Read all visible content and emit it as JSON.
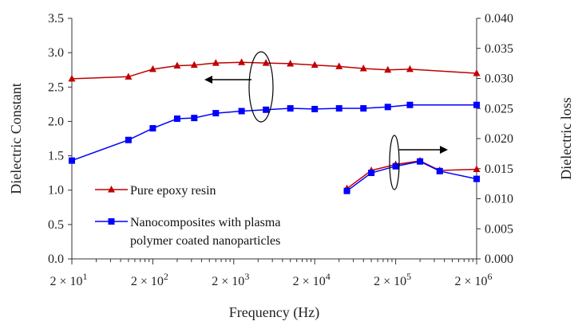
{
  "chart_data": {
    "type": "line",
    "x_scale": "log",
    "xlabel": "Frequency (Hz)",
    "ylabel_left": "Dielectric Constant",
    "ylabel_right": "Dielectric loss",
    "ylim_left": [
      0,
      3.5
    ],
    "ylim_right": [
      0,
      0.04
    ],
    "xlim": [
      20,
      2000000
    ],
    "y_ticks_left": [
      "0.0",
      "0.5",
      "1.0",
      "1.5",
      "2.0",
      "2.5",
      "3.0",
      "3.5"
    ],
    "y_ticks_right": [
      "0.000",
      "0.005",
      "0.010",
      "0.015",
      "0.020",
      "0.025",
      "0.030",
      "0.035",
      "0.040"
    ],
    "x_ticks": [
      {
        "value": 20,
        "base": "2 × 10",
        "exp": "1"
      },
      {
        "value": 200,
        "base": "2 × 10",
        "exp": "2"
      },
      {
        "value": 2000,
        "base": "2 × 10",
        "exp": "3"
      },
      {
        "value": 20000,
        "base": "2 × 10",
        "exp": "4"
      },
      {
        "value": 200000,
        "base": "2 × 10",
        "exp": "5"
      },
      {
        "value": 2000000,
        "base": "2 × 10",
        "exp": "6"
      }
    ],
    "grid": false,
    "legend_position": "lower-left",
    "series": [
      {
        "name": "Pure epoxy resin",
        "color": "#C00000",
        "marker": "triangle",
        "axis": "left",
        "points": [
          [
            20,
            2.62
          ],
          [
            100,
            2.65
          ],
          [
            200,
            2.76
          ],
          [
            400,
            2.81
          ],
          [
            650,
            2.82
          ],
          [
            1200,
            2.85
          ],
          [
            2500,
            2.86
          ],
          [
            5000,
            2.85
          ],
          [
            10000,
            2.84
          ],
          [
            20000,
            2.82
          ],
          [
            40000,
            2.8
          ],
          [
            80000,
            2.77
          ],
          [
            160000,
            2.75
          ],
          [
            300000,
            2.76
          ],
          [
            2000000,
            2.7
          ]
        ]
      },
      {
        "name": "Nanocomposites with plasma polymer coated nanoparticles",
        "color": "#0000FF",
        "marker": "square",
        "axis": "left",
        "points": [
          [
            20,
            1.43
          ],
          [
            100,
            1.73
          ],
          [
            200,
            1.9
          ],
          [
            400,
            2.04
          ],
          [
            650,
            2.05
          ],
          [
            1200,
            2.12
          ],
          [
            2500,
            2.15
          ],
          [
            5000,
            2.17
          ],
          [
            10000,
            2.19
          ],
          [
            20000,
            2.18
          ],
          [
            40000,
            2.19
          ],
          [
            80000,
            2.19
          ],
          [
            160000,
            2.21
          ],
          [
            300000,
            2.24
          ],
          [
            2000000,
            2.24
          ]
        ]
      },
      {
        "name": "Pure epoxy resin",
        "color": "#C00000",
        "marker": "triangle",
        "axis": "right",
        "points": [
          [
            50000,
            0.0117
          ],
          [
            100000,
            0.0147
          ],
          [
            200000,
            0.0157
          ],
          [
            400000,
            0.0163
          ],
          [
            700000,
            0.0147
          ],
          [
            2000000,
            0.0149
          ]
        ]
      },
      {
        "name": "Nanocomposites with plasma polymer coated nanoparticles",
        "color": "#0000FF",
        "marker": "square",
        "axis": "right",
        "points": [
          [
            50000,
            0.0113
          ],
          [
            100000,
            0.0143
          ],
          [
            200000,
            0.0154
          ],
          [
            400000,
            0.0162
          ],
          [
            700000,
            0.0146
          ],
          [
            2000000,
            0.0133
          ]
        ]
      }
    ],
    "legend": [
      {
        "color": "#C00000",
        "marker": "triangle",
        "lines": [
          "Pure epoxy resin"
        ]
      },
      {
        "color": "#0000FF",
        "marker": "square",
        "lines": [
          "Nanocomposites with plasma",
          "polymer coated nanoparticles"
        ]
      }
    ]
  }
}
